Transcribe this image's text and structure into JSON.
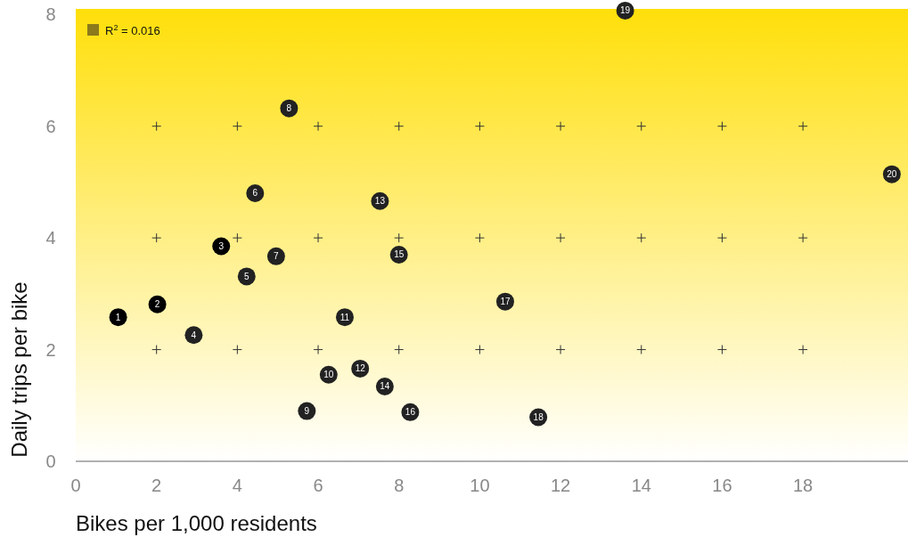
{
  "chart_data": {
    "type": "scatter",
    "xlabel": "Bikes per 1,000 residents",
    "ylabel": "Daily trips per bike",
    "x": [
      1.05,
      2.02,
      3.6,
      2.92,
      4.23,
      4.44,
      4.96,
      5.28,
      5.72,
      6.26,
      6.66,
      7.04,
      7.53,
      7.65,
      8.0,
      8.28,
      10.63,
      11.45,
      13.6,
      20.2
    ],
    "values": [
      2.58,
      2.81,
      3.85,
      2.26,
      3.31,
      4.8,
      3.67,
      6.32,
      0.9,
      1.55,
      2.58,
      1.66,
      4.66,
      1.34,
      3.7,
      0.88,
      2.86,
      0.79,
      8.07,
      5.14
    ],
    "colors": [
      "#000000",
      "#000000",
      "#000000",
      "#222222",
      "#222222",
      "#222222",
      "#222222",
      "#222222",
      "#222222",
      "#222222",
      "#222222",
      "#222222",
      "#222222",
      "#222222",
      "#222222",
      "#222222",
      "#222222",
      "#222222",
      "#222222",
      "#222222"
    ],
    "xlim": [
      0,
      20.6
    ],
    "xticks": [
      0,
      2,
      4,
      6,
      8,
      10,
      12,
      14,
      16,
      18
    ],
    "ylim": [
      0,
      8.1
    ],
    "yticks": [
      0,
      2,
      4,
      6,
      8
    ],
    "marker": "circle",
    "annotations": [
      "R$^{2}$ = 0.016",
      {
        "text": "1",
        "x": 1.05,
        "y": 2.58
      },
      {
        "text": "2",
        "x": 2.02,
        "y": 2.81
      },
      {
        "text": "3",
        "x": 3.6,
        "y": 3.85
      },
      {
        "text": "4",
        "x": 2.92,
        "y": 2.26
      },
      {
        "text": "5",
        "x": 4.23,
        "y": 3.31
      },
      {
        "text": "6",
        "x": 4.44,
        "y": 4.8
      },
      {
        "text": "7",
        "x": 4.96,
        "y": 3.67
      },
      {
        "text": "8",
        "x": 5.28,
        "y": 6.32
      },
      {
        "text": "9",
        "x": 5.72,
        "y": 0.9
      },
      {
        "text": "10",
        "x": 6.26,
        "y": 1.55
      },
      {
        "text": "11",
        "x": 6.66,
        "y": 2.58
      },
      {
        "text": "12",
        "x": 7.04,
        "y": 1.66
      },
      {
        "text": "13",
        "x": 7.53,
        "y": 4.66
      },
      {
        "text": "14",
        "x": 7.65,
        "y": 1.34
      },
      {
        "text": "15",
        "x": 8.0,
        "y": 3.7
      },
      {
        "text": "16",
        "x": 8.28,
        "y": 0.88
      },
      {
        "text": "17",
        "x": 10.63,
        "y": 2.86
      },
      {
        "text": "18",
        "x": 11.45,
        "y": 0.79
      },
      {
        "text": "19",
        "x": 13.6,
        "y": 8.07
      },
      {
        "text": "20",
        "x": 20.2,
        "y": 5.14
      }
    ]
  }
}
